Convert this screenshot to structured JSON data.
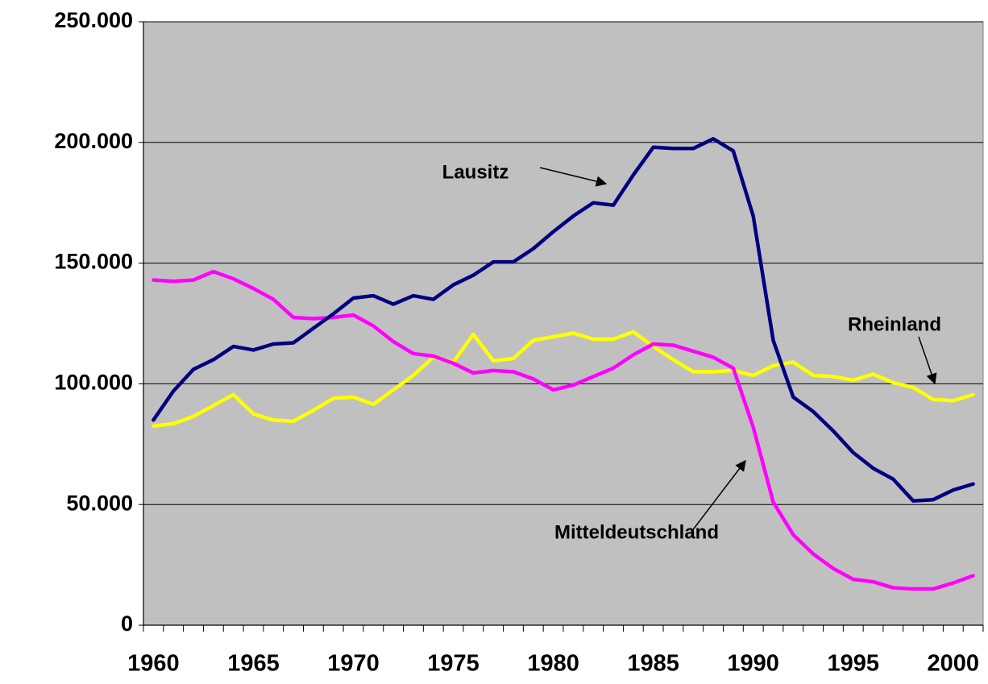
{
  "chart_data": {
    "type": "line",
    "categories": [
      "1960",
      null,
      null,
      null,
      null,
      "1965",
      null,
      null,
      null,
      null,
      "1970",
      null,
      null,
      null,
      null,
      "1975",
      null,
      null,
      null,
      null,
      "1980",
      null,
      null,
      null,
      null,
      "1985",
      null,
      null,
      null,
      null,
      "1990",
      null,
      null,
      null,
      null,
      "1995",
      null,
      null,
      null,
      null,
      "2000",
      null
    ],
    "series": [
      {
        "name": "Lausitz",
        "color": "#000080",
        "values": [
          85000,
          97000,
          106000,
          110000,
          115500,
          114000,
          116500,
          117000,
          123000,
          129000,
          135500,
          136500,
          133000,
          136500,
          135000,
          141000,
          145000,
          150500,
          150500,
          156000,
          163000,
          169500,
          175000,
          174000,
          186500,
          198000,
          197500,
          197500,
          201500,
          196500,
          169500,
          118000,
          94500,
          88500,
          80500,
          71500,
          65000,
          60500,
          51500,
          52000,
          56000,
          58500
        ]
      },
      {
        "name": "Mitteldeutschland",
        "color": "#ff00ff",
        "values": [
          143000,
          142500,
          143000,
          146500,
          143500,
          139500,
          135000,
          127500,
          127000,
          127500,
          128500,
          124000,
          117500,
          112500,
          111500,
          108500,
          104500,
          105500,
          105000,
          102000,
          97500,
          99500,
          103000,
          106500,
          112000,
          116500,
          116000,
          113500,
          111000,
          106500,
          82000,
          51000,
          37500,
          29500,
          23500,
          19000,
          18000,
          15500,
          15000,
          15000,
          17500,
          20500
        ]
      },
      {
        "name": "Rheinland",
        "color": "#ffff00",
        "values": [
          82500,
          83500,
          86500,
          91000,
          95500,
          87500,
          85000,
          84500,
          89000,
          94000,
          94500,
          91500,
          97500,
          103500,
          111000,
          109000,
          120500,
          109500,
          110500,
          118000,
          119500,
          121000,
          118500,
          118500,
          121500,
          115500,
          110000,
          105000,
          105000,
          105500,
          103500,
          107500,
          109000,
          103500,
          103000,
          101500,
          104000,
          100500,
          98500,
          93500,
          93000,
          95500
        ]
      }
    ],
    "ylim": [
      0,
      250000
    ],
    "yticks": [
      0,
      {
        "value": 50000,
        "label": "50.000"
      },
      {
        "value": 100000,
        "label": "100.000"
      },
      {
        "value": 150000,
        "label": "150.000"
      },
      {
        "value": 200000,
        "label": "200.000"
      },
      {
        "value": 250000,
        "label": "250.000"
      }
    ],
    "grid": true,
    "plot_background": "#c0c0c0"
  }
}
